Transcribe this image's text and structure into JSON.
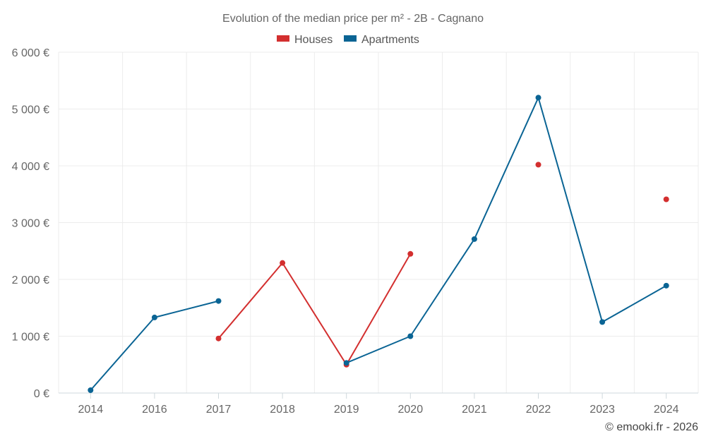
{
  "chart_data": {
    "type": "line",
    "title": "Evolution of the median price per m² - 2B - Cagnano",
    "categories": [
      "2014",
      "2016",
      "2017",
      "2018",
      "2019",
      "2020",
      "2021",
      "2022",
      "2023",
      "2024"
    ],
    "series": [
      {
        "name": "Houses",
        "color": "#d32f2f",
        "values": [
          null,
          null,
          960,
          2290,
          500,
          2450,
          null,
          4020,
          null,
          3410
        ]
      },
      {
        "name": "Apartments",
        "color": "#0a6494",
        "values": [
          50,
          1330,
          1620,
          null,
          530,
          1000,
          2710,
          5200,
          1250,
          1890
        ]
      }
    ],
    "ylim": [
      0,
      6000
    ],
    "yticks": [
      0,
      1000,
      2000,
      3000,
      4000,
      5000,
      6000
    ],
    "ytick_labels": [
      "0 €",
      "1 000 €",
      "2 000 €",
      "3 000 €",
      "4 000 €",
      "5 000 €",
      "6 000 €"
    ],
    "xlabel": "",
    "ylabel": "",
    "grid": true,
    "legend_position": "top-center"
  },
  "credit": "© emooki.fr - 2026"
}
